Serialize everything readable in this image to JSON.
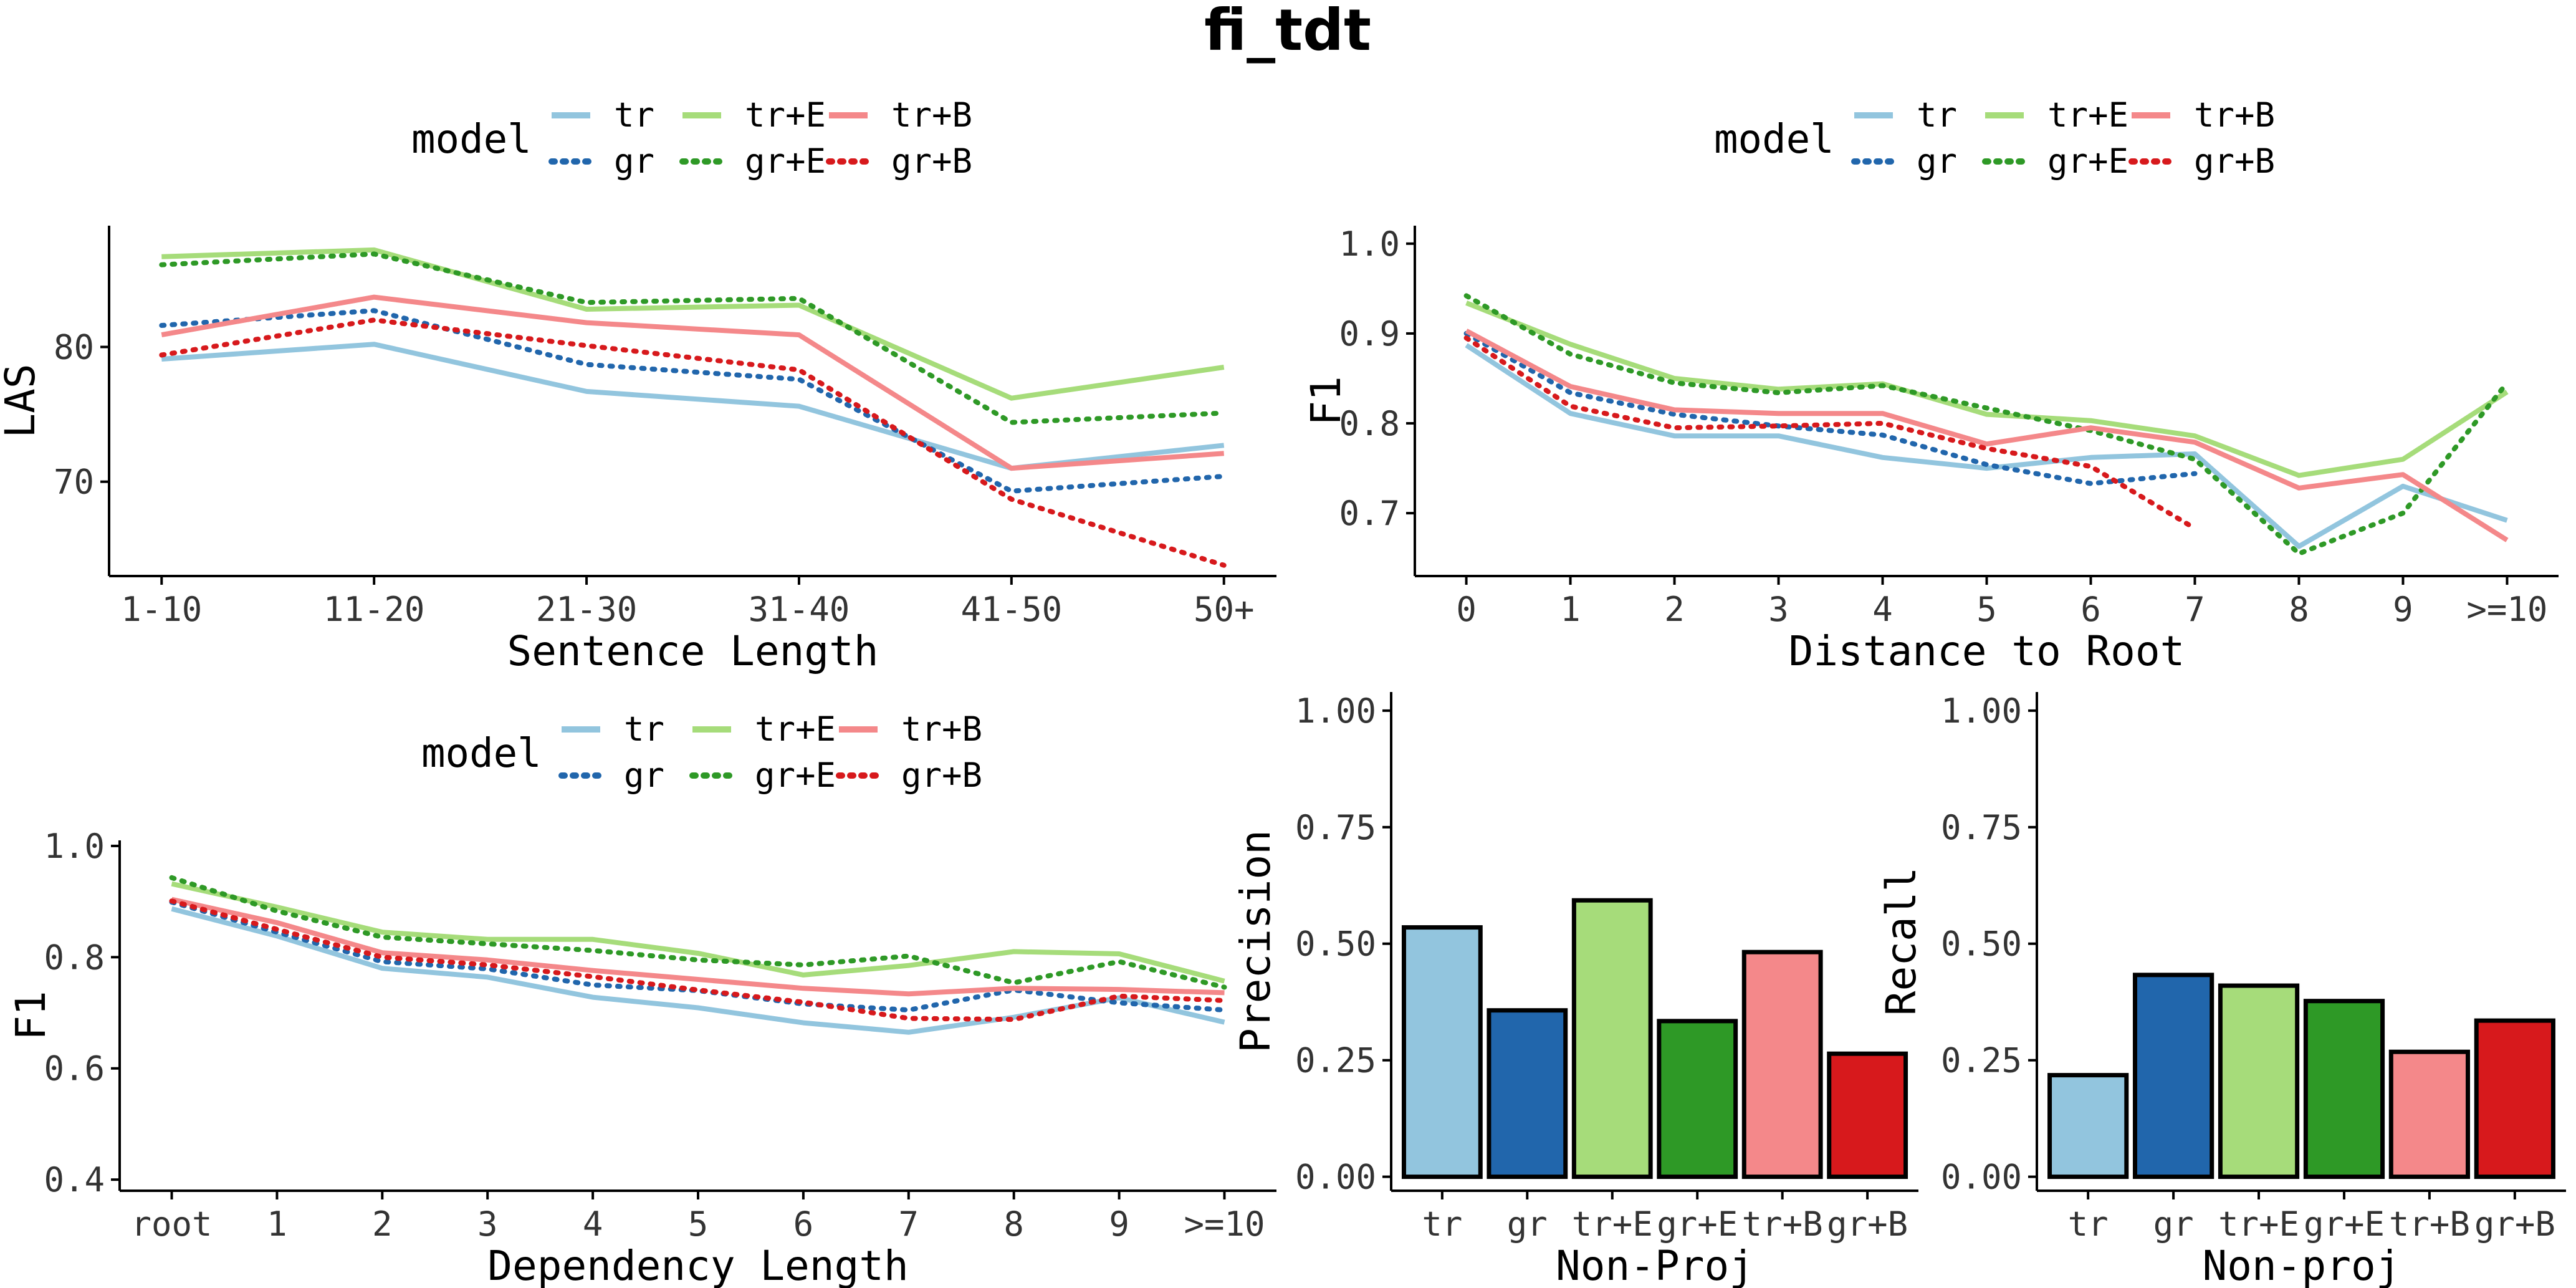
{
  "title": "fi_tdt",
  "colors": {
    "tr": "#92c5de",
    "gr": "#2166ac",
    "tr+E": "#a6dc7a",
    "gr+E": "#2e9926",
    "tr+B": "#f4888a",
    "gr+B": "#d7191c",
    "axis": "#000000"
  },
  "legend": {
    "title": "model",
    "entries": [
      {
        "label": "tr",
        "key": "tr",
        "style": "solid"
      },
      {
        "label": "tr+E",
        "key": "tr+E",
        "style": "solid"
      },
      {
        "label": "tr+B",
        "key": "tr+B",
        "style": "solid"
      },
      {
        "label": "gr",
        "key": "gr",
        "style": "dotted"
      },
      {
        "label": "gr+E",
        "key": "gr+E",
        "style": "dotted"
      },
      {
        "label": "gr+B",
        "key": "gr+B",
        "style": "dotted"
      }
    ]
  },
  "chart_data": [
    {
      "id": "sentence-length",
      "type": "line",
      "categories": [
        "1-10",
        "11-20",
        "21-30",
        "31-40",
        "41-50",
        "50+"
      ],
      "xlabel": "Sentence Length",
      "ylabel": "LAS",
      "ylim": [
        63,
        89
      ],
      "yticks": [
        70,
        80
      ],
      "ytick_labels": [
        "70",
        "80"
      ],
      "legend_position": "top",
      "series": [
        {
          "name": "tr",
          "style": "solid",
          "values": [
            79.1,
            80.2,
            76.7,
            75.6,
            71.0,
            72.7
          ]
        },
        {
          "name": "gr",
          "style": "dotted",
          "values": [
            81.6,
            82.7,
            78.7,
            77.6,
            69.3,
            70.4
          ]
        },
        {
          "name": "tr+E",
          "style": "solid",
          "values": [
            86.7,
            87.2,
            82.8,
            83.1,
            76.2,
            78.5
          ]
        },
        {
          "name": "gr+E",
          "style": "dotted",
          "values": [
            86.1,
            86.9,
            83.3,
            83.6,
            74.4,
            75.1
          ]
        },
        {
          "name": "tr+B",
          "style": "solid",
          "values": [
            80.9,
            83.7,
            81.8,
            80.9,
            71.0,
            72.1
          ]
        },
        {
          "name": "gr+B",
          "style": "dotted",
          "values": [
            79.4,
            82.0,
            80.1,
            78.3,
            68.7,
            63.8
          ]
        }
      ]
    },
    {
      "id": "distance-to-root",
      "type": "line",
      "categories": [
        "0",
        "1",
        "2",
        "3",
        "4",
        "5",
        "6",
        "7",
        "8",
        "9",
        ">=10"
      ],
      "xlabel": "Distance to Root",
      "ylabel": "F1",
      "ylim": [
        0.63,
        1.02
      ],
      "yticks": [
        0.7,
        0.8,
        0.9,
        1.0
      ],
      "ytick_labels": [
        "0.7",
        "0.8",
        "0.9",
        "1.0"
      ],
      "legend_position": "top",
      "series": [
        {
          "name": "tr",
          "style": "solid",
          "values": [
            0.887,
            0.811,
            0.786,
            0.786,
            0.762,
            0.75,
            0.762,
            0.766,
            0.663,
            0.73,
            0.692
          ]
        },
        {
          "name": "gr",
          "style": "dotted",
          "values": [
            0.9,
            0.834,
            0.81,
            0.797,
            0.787,
            0.754,
            0.733,
            0.744,
            null,
            null,
            null
          ]
        },
        {
          "name": "tr+E",
          "style": "solid",
          "values": [
            0.934,
            0.888,
            0.85,
            0.838,
            0.844,
            0.81,
            0.803,
            0.786,
            0.742,
            0.76,
            0.835
          ]
        },
        {
          "name": "gr+E",
          "style": "dotted",
          "values": [
            0.942,
            0.877,
            0.845,
            0.834,
            0.842,
            0.817,
            0.792,
            0.76,
            0.655,
            0.7,
            0.845
          ]
        },
        {
          "name": "tr+B",
          "style": "solid",
          "values": [
            0.903,
            0.841,
            0.815,
            0.811,
            0.811,
            0.777,
            0.795,
            0.779,
            0.728,
            0.743,
            0.67
          ]
        },
        {
          "name": "gr+B",
          "style": "dotted",
          "values": [
            0.895,
            0.819,
            0.795,
            0.797,
            0.8,
            0.772,
            0.752,
            0.683,
            null,
            null,
            null
          ]
        }
      ]
    },
    {
      "id": "dependency-length",
      "type": "line",
      "categories": [
        "root",
        "1",
        "2",
        "3",
        "4",
        "5",
        "6",
        "7",
        "8",
        "9",
        ">=10"
      ],
      "xlabel": "Dependency Length",
      "ylabel": "F1",
      "ylim": [
        0.38,
        1.01
      ],
      "yticks": [
        0.4,
        0.6,
        0.8,
        1.0
      ],
      "ytick_labels": [
        "0.4",
        "0.6",
        "0.8",
        "1.0"
      ],
      "legend_position": "top",
      "series": [
        {
          "name": "tr",
          "style": "solid",
          "values": [
            0.887,
            0.838,
            0.78,
            0.764,
            0.728,
            0.709,
            0.682,
            0.665,
            0.692,
            0.727,
            0.683
          ]
        },
        {
          "name": "gr",
          "style": "dotted",
          "values": [
            0.899,
            0.845,
            0.792,
            0.779,
            0.75,
            0.74,
            0.716,
            0.705,
            0.741,
            0.718,
            0.705
          ]
        },
        {
          "name": "tr+E",
          "style": "solid",
          "values": [
            0.932,
            0.89,
            0.845,
            0.832,
            0.832,
            0.807,
            0.768,
            0.785,
            0.81,
            0.806,
            0.757
          ]
        },
        {
          "name": "gr+E",
          "style": "dotted",
          "values": [
            0.943,
            0.883,
            0.836,
            0.824,
            0.812,
            0.795,
            0.786,
            0.802,
            0.754,
            0.792,
            0.746
          ]
        },
        {
          "name": "tr+B",
          "style": "solid",
          "values": [
            0.904,
            0.862,
            0.808,
            0.795,
            0.776,
            0.76,
            0.744,
            0.734,
            0.744,
            0.742,
            0.736
          ]
        },
        {
          "name": "gr+B",
          "style": "dotted",
          "values": [
            0.901,
            0.85,
            0.8,
            0.786,
            0.765,
            0.741,
            0.719,
            0.69,
            0.688,
            0.73,
            0.722
          ]
        }
      ]
    },
    {
      "id": "non-proj-precision",
      "type": "bar",
      "categories": [
        "tr",
        "gr",
        "tr+E",
        "gr+E",
        "tr+B",
        "gr+B"
      ],
      "values": [
        0.535,
        0.357,
        0.593,
        0.334,
        0.482,
        0.264
      ],
      "xlabel": "Non-Proj",
      "ylabel": "Precision",
      "ylim": [
        -0.03,
        1.04
      ],
      "yticks": [
        0.0,
        0.25,
        0.5,
        0.75,
        1.0
      ],
      "ytick_labels": [
        "0.00",
        "0.25",
        "0.50",
        "0.75",
        "1.00"
      ]
    },
    {
      "id": "non-proj-recall",
      "type": "bar",
      "categories": [
        "tr",
        "gr",
        "tr+E",
        "gr+E",
        "tr+B",
        "gr+B"
      ],
      "values": [
        0.218,
        0.433,
        0.41,
        0.377,
        0.268,
        0.335
      ],
      "xlabel": "Non-proj",
      "ylabel": "Recall",
      "ylim": [
        -0.03,
        1.04
      ],
      "yticks": [
        0.0,
        0.25,
        0.5,
        0.75,
        1.0
      ],
      "ytick_labels": [
        "0.00",
        "0.25",
        "0.50",
        "0.75",
        "1.00"
      ]
    }
  ]
}
